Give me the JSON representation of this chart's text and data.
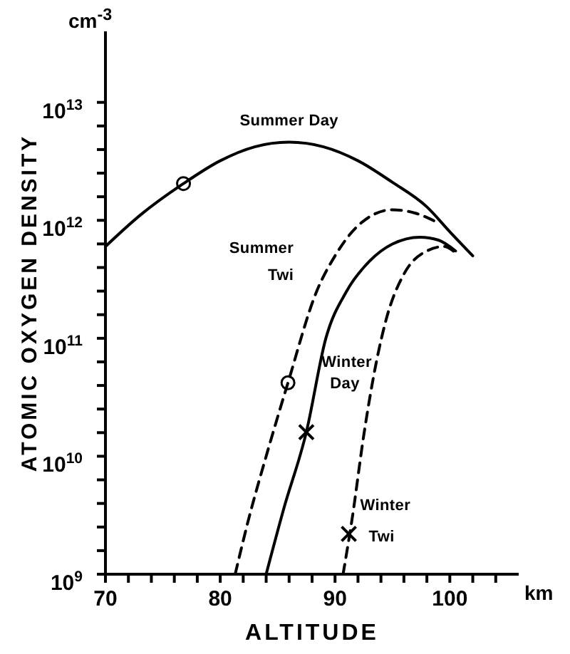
{
  "chart_data": {
    "type": "line",
    "xlabel": "ALTITUDE",
    "ylabel": "ATOMIC OXYGEN DENSITY",
    "annotations": [
      "km",
      "cm$^{-3}$"
    ],
    "log": true,
    "xlim": [
      70,
      106
    ],
    "ylim": [
      1000000000.0,
      40000000000000.0
    ],
    "xticks": [
      70,
      {
        "value": 72,
        "label": null
      },
      {
        "value": 74,
        "label": null
      },
      {
        "value": 76,
        "label": null
      },
      {
        "value": 78,
        "label": null
      },
      80,
      {
        "value": 82,
        "label": null
      },
      {
        "value": 84,
        "label": null
      },
      {
        "value": 86,
        "label": null
      },
      {
        "value": 88,
        "label": null
      },
      90,
      {
        "value": 92,
        "label": null
      },
      {
        "value": 94,
        "label": null
      },
      {
        "value": 96,
        "label": null
      },
      {
        "value": 98,
        "label": null
      },
      100,
      {
        "value": 102,
        "label": null
      },
      {
        "value": 104,
        "label": null
      }
    ],
    "yticks": [
      {
        "value": 1000000000.0,
        "label": "10$^{9}$"
      },
      {
        "value": 1585000000.0,
        "label": null
      },
      {
        "value": 2512000000.0,
        "label": null
      },
      {
        "value": 3981000000.0,
        "label": null
      },
      {
        "value": 6310000000.0,
        "label": null
      },
      {
        "value": 10000000000.0,
        "label": "10$^{10}$"
      },
      {
        "value": 15850000000.0,
        "label": null
      },
      {
        "value": 25120000000.0,
        "label": null
      },
      {
        "value": 39810000000.0,
        "label": null
      },
      {
        "value": 63100000000.0,
        "label": null
      },
      {
        "value": 100000000000.0,
        "label": "10$^{11}$"
      },
      {
        "value": 158500000000.0,
        "label": null
      },
      {
        "value": 251200000000.0,
        "label": null
      },
      {
        "value": 398100000000.0,
        "label": null
      },
      {
        "value": 631000000000.0,
        "label": null
      },
      {
        "value": 1000000000000.0,
        "label": "10$^{12}$"
      },
      {
        "value": 1585000000000.0,
        "label": null
      },
      {
        "value": 2512000000000.0,
        "label": null
      },
      {
        "value": 3981000000000.0,
        "label": null
      },
      {
        "value": 6310000000000.0,
        "label": null
      },
      {
        "value": 10000000000000.0,
        "label": "10$^{13}$"
      }
    ],
    "series": [
      {
        "name": "Summer Day",
        "line_style": "solid",
        "color": "#000000",
        "x": [
          70,
          73,
          76.8,
          80,
          83,
          86,
          89,
          92,
          95,
          98,
          100,
          102
        ],
        "values": [
          600000000000.0,
          1100000000000.0,
          2050000000000.0,
          3200000000000.0,
          4200000000000.0,
          4600000000000.0,
          4200000000000.0,
          3200000000000.0,
          2100000000000.0,
          1300000000000.0,
          800000000000.0,
          500000000000.0
        ]
      },
      {
        "name": "Summer Twi",
        "line_style": "dashed",
        "color": "#000000",
        "x": [
          81.3,
          82.5,
          84,
          85.9,
          88.4,
          90,
          92,
          95,
          97,
          99
        ],
        "values": [
          1000000000.0,
          3000000000.0,
          10000000000.0,
          42000000000.0,
          250000000000.0,
          500000000000.0,
          900000000000.0,
          1230000000000.0,
          1150000000000.0,
          950000000000.0
        ]
      },
      {
        "name": "Winter Day",
        "line_style": "solid",
        "color": "#000000",
        "x": [
          84,
          85.5,
          87.5,
          89.2,
          91,
          93,
          95,
          97.4,
          99,
          100.5
        ],
        "values": [
          1000000000.0,
          3500000000.0,
          16000000000.0,
          100000000000.0,
          250000000000.0,
          450000000000.0,
          630000000000.0,
          720000000000.0,
          680000000000.0,
          550000000000.0
        ]
      },
      {
        "name": "Winter Twi",
        "line_style": "dashed",
        "color": "#000000",
        "x": [
          90.7,
          91.5,
          92.5,
          93.6,
          94.5,
          96,
          98,
          99.5,
          100.5
        ],
        "values": [
          1000000000.0,
          3000000000.0,
          15000000000.0,
          63000000000.0,
          150000000000.0,
          350000000000.0,
          550000000000.0,
          600000000000.0,
          530000000000.0
        ]
      },
      {
        "type": "scatter",
        "marker": "circle",
        "color": "#000000",
        "x": [
          76.8,
          85.9
        ],
        "values": [
          2050000000000.0,
          42000000000.0
        ]
      },
      {
        "type": "scatter",
        "marker": "cross",
        "color": "#000000",
        "x": [
          87.5,
          91.2
        ],
        "values": [
          16000000000.0,
          2200000000.0
        ]
      }
    ]
  }
}
